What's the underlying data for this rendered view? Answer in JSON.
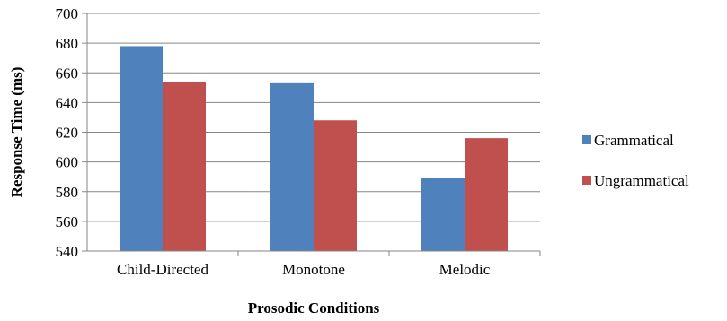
{
  "chart_data": {
    "type": "bar",
    "title": "",
    "xlabel": "Prosodic Conditions",
    "ylabel": "Response Time (ms)",
    "ylim": [
      540,
      700
    ],
    "yticks": [
      540,
      560,
      580,
      600,
      620,
      640,
      660,
      680,
      700
    ],
    "grid": true,
    "legend_position": "right",
    "categories": [
      "Child-Directed",
      "Monotone",
      "Melodic"
    ],
    "series": [
      {
        "name": "Grammatical",
        "color": "#4f81bd",
        "values": [
          678,
          653,
          589
        ]
      },
      {
        "name": "Ungrammatical",
        "color": "#c0504d",
        "values": [
          654,
          628,
          616
        ]
      }
    ]
  }
}
